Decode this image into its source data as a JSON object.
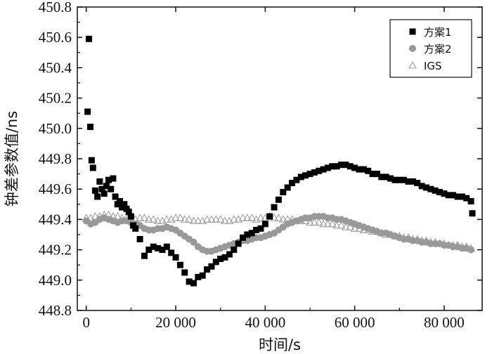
{
  "chart_data": {
    "type": "scatter",
    "xlabel": "时间/s",
    "ylabel": "钟差参数值/ns",
    "xlim": [
      -2000,
      88500
    ],
    "ylim": [
      448.8,
      450.8
    ],
    "xticks": [
      0,
      20000,
      40000,
      60000,
      80000
    ],
    "xtick_labels": [
      "0",
      "20 000",
      "40 000",
      "60 000",
      "80 000"
    ],
    "yticks": [
      448.8,
      449.0,
      449.2,
      449.4,
      449.6,
      449.8,
      450.0,
      450.2,
      450.4,
      450.6,
      450.8
    ],
    "ytick_labels": [
      "448.8",
      "449.0",
      "449.2",
      "449.4",
      "449.6",
      "449.8",
      "450.0",
      "450.2",
      "450.4",
      "450.6",
      "450.8"
    ],
    "grid": false,
    "legend_position": "top-right",
    "series": [
      {
        "name": "方案1",
        "marker": "square",
        "color": "#000000",
        "x": [
          300,
          600,
          900,
          1200,
          1500,
          2000,
          2500,
          3000,
          3500,
          4000,
          4500,
          5000,
          5500,
          6000,
          6500,
          7000,
          7500,
          8000,
          8500,
          9000,
          9500,
          10000,
          10500,
          11000,
          12000,
          13000,
          14000,
          15000,
          16000,
          17000,
          18000,
          19000,
          20000,
          21000,
          22000,
          23000,
          24000,
          25000,
          26000,
          27000,
          28000,
          29000,
          30000,
          31000,
          32000,
          33000,
          34000,
          35000,
          36000,
          37000,
          38000,
          39000,
          40000,
          41000,
          42000,
          43000,
          44000,
          45000,
          46000,
          47000,
          48000,
          49000,
          50000,
          51000,
          52000,
          53000,
          54000,
          55000,
          56000,
          57000,
          58000,
          59000,
          60000,
          61000,
          62000,
          63000,
          64000,
          65000,
          66000,
          67000,
          68000,
          69000,
          70000,
          71000,
          72000,
          73000,
          74000,
          75000,
          76000,
          77000,
          78000,
          79000,
          80000,
          81000,
          82000,
          83000,
          84000,
          85000,
          86000,
          86300
        ],
        "y": [
          450.11,
          450.59,
          450.01,
          449.79,
          449.74,
          449.59,
          449.55,
          449.65,
          449.6,
          449.57,
          449.62,
          449.66,
          449.6,
          449.67,
          449.55,
          449.5,
          449.52,
          449.48,
          449.5,
          449.47,
          449.45,
          449.42,
          449.36,
          449.34,
          449.27,
          449.16,
          449.2,
          449.22,
          449.21,
          449.2,
          449.22,
          449.18,
          449.15,
          449.1,
          449.05,
          448.99,
          448.98,
          449.02,
          449.03,
          449.07,
          449.09,
          449.12,
          449.14,
          449.15,
          449.17,
          449.2,
          449.24,
          449.28,
          449.3,
          449.31,
          449.33,
          449.34,
          449.37,
          449.42,
          449.48,
          449.53,
          449.58,
          449.61,
          449.64,
          449.66,
          449.68,
          449.69,
          449.7,
          449.71,
          449.72,
          449.73,
          449.74,
          449.75,
          449.75,
          449.76,
          449.76,
          449.75,
          449.74,
          449.73,
          449.73,
          449.72,
          449.7,
          449.7,
          449.68,
          449.68,
          449.67,
          449.66,
          449.66,
          449.66,
          449.65,
          449.65,
          449.64,
          449.62,
          449.61,
          449.6,
          449.59,
          449.58,
          449.57,
          449.56,
          449.56,
          449.55,
          449.55,
          449.54,
          449.52,
          449.44
        ]
      },
      {
        "name": "方案2",
        "marker": "circle",
        "color": "#999999",
        "x": [
          0,
          1000,
          2000,
          3000,
          4000,
          5000,
          6000,
          7000,
          8000,
          9000,
          10000,
          11000,
          12000,
          13000,
          14000,
          15000,
          16000,
          17000,
          18000,
          19000,
          20000,
          21000,
          22000,
          23000,
          24000,
          25000,
          26000,
          27000,
          28000,
          29000,
          30000,
          31000,
          32000,
          33000,
          34000,
          35000,
          36000,
          37000,
          38000,
          39000,
          40000,
          41000,
          42000,
          43000,
          44000,
          45000,
          46000,
          47000,
          48000,
          49000,
          50000,
          51000,
          52000,
          53000,
          54000,
          55000,
          56000,
          57000,
          58000,
          59000,
          60000,
          61000,
          62000,
          63000,
          64000,
          65000,
          66000,
          67000,
          68000,
          69000,
          70000,
          71000,
          72000,
          73000,
          74000,
          75000,
          76000,
          77000,
          78000,
          79000,
          80000,
          81000,
          82000,
          83000,
          84000,
          85000,
          86000
        ],
        "y": [
          449.39,
          449.37,
          449.38,
          449.4,
          449.41,
          449.4,
          449.39,
          449.38,
          449.39,
          449.39,
          449.38,
          449.37,
          449.36,
          449.34,
          449.33,
          449.33,
          449.34,
          449.34,
          449.35,
          449.34,
          449.33,
          449.31,
          449.29,
          449.27,
          449.25,
          449.22,
          449.2,
          449.19,
          449.19,
          449.2,
          449.21,
          449.22,
          449.23,
          449.24,
          449.25,
          449.26,
          449.26,
          449.27,
          449.28,
          449.28,
          449.29,
          449.3,
          449.31,
          449.33,
          449.35,
          449.37,
          449.38,
          449.39,
          449.4,
          449.41,
          449.41,
          449.42,
          449.42,
          449.42,
          449.41,
          449.41,
          449.4,
          449.4,
          449.39,
          449.38,
          449.37,
          449.36,
          449.35,
          449.34,
          449.33,
          449.32,
          449.31,
          449.31,
          449.3,
          449.29,
          449.28,
          449.27,
          449.27,
          449.26,
          449.26,
          449.25,
          449.25,
          449.24,
          449.24,
          449.24,
          449.23,
          449.23,
          449.22,
          449.22,
          449.21,
          449.21,
          449.2
        ]
      },
      {
        "name": "IGS",
        "marker": "triangle-open",
        "color": "#999999",
        "x": [
          0,
          1000,
          2000,
          3000,
          4000,
          5000,
          6000,
          7000,
          8000,
          9000,
          10000,
          11000,
          12000,
          13000,
          14000,
          15000,
          16000,
          17000,
          18000,
          19000,
          20000,
          21000,
          22000,
          23000,
          24000,
          25000,
          26000,
          27000,
          28000,
          29000,
          30000,
          31000,
          32000,
          33000,
          34000,
          35000,
          36000,
          37000,
          38000,
          39000,
          40000,
          41000,
          42000,
          43000,
          44000,
          45000,
          46000,
          47000,
          48000,
          49000,
          50000,
          51000,
          52000,
          53000,
          54000,
          55000,
          56000,
          57000,
          58000,
          59000,
          60000,
          61000,
          62000,
          63000,
          64000,
          65000,
          66000,
          67000,
          68000,
          69000,
          70000,
          71000,
          72000,
          73000,
          74000,
          75000,
          76000,
          77000,
          78000,
          79000,
          80000,
          81000,
          82000,
          83000,
          84000,
          85000,
          86000
        ],
        "y": [
          449.41,
          449.41,
          449.42,
          449.42,
          449.43,
          449.43,
          449.42,
          449.42,
          449.41,
          449.41,
          449.4,
          449.4,
          449.41,
          449.41,
          449.4,
          449.4,
          449.39,
          449.39,
          449.4,
          449.4,
          449.41,
          449.41,
          449.4,
          449.4,
          449.39,
          449.39,
          449.39,
          449.4,
          449.4,
          449.4,
          449.4,
          449.39,
          449.39,
          449.4,
          449.4,
          449.41,
          449.41,
          449.41,
          449.4,
          449.41,
          449.41,
          449.42,
          449.41,
          449.41,
          449.4,
          449.4,
          449.4,
          449.39,
          449.39,
          449.39,
          449.38,
          449.38,
          449.38,
          449.37,
          449.37,
          449.37,
          449.36,
          449.36,
          449.35,
          449.35,
          449.34,
          449.34,
          449.33,
          449.33,
          449.32,
          449.32,
          449.31,
          449.3,
          449.3,
          449.29,
          449.29,
          449.28,
          449.28,
          449.27,
          449.27,
          449.26,
          449.26,
          449.25,
          449.25,
          449.24,
          449.24,
          449.23,
          449.23,
          449.23,
          449.22,
          449.22,
          449.21
        ]
      }
    ]
  }
}
